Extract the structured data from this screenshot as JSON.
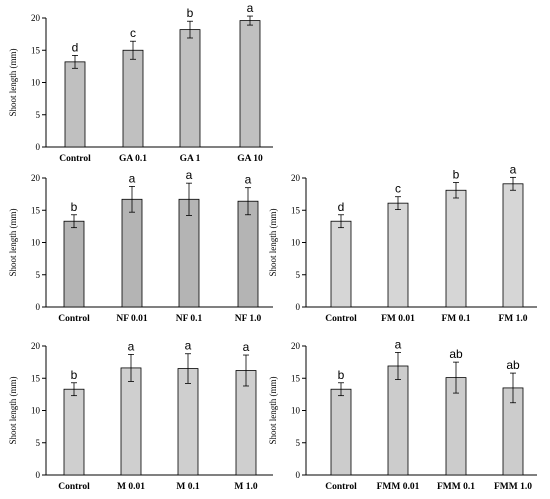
{
  "chart_data": [
    {
      "type": "bar",
      "ylabel": "Shoot length (mm)",
      "ylim": [
        0,
        20
      ],
      "yticks": [
        0,
        5,
        10,
        15,
        20
      ],
      "grid": false,
      "bar_color": "#c0c0c0",
      "categories": [
        "Control",
        "GA 0.1",
        "GA 1",
        "GA 10"
      ],
      "values": [
        13.2,
        15.0,
        18.2,
        19.6
      ],
      "errors": [
        1.0,
        1.4,
        1.3,
        0.7
      ],
      "significance": [
        "d",
        "c",
        "b",
        "a"
      ]
    },
    {
      "type": "bar",
      "ylabel": "Shoot length (mm)",
      "ylim": [
        0,
        20
      ],
      "yticks": [
        0,
        5,
        10,
        15,
        20
      ],
      "grid": false,
      "bar_color": "#b4b4b4",
      "categories": [
        "Control",
        "NF 0.01",
        "NF 0.1",
        "NF 1.0"
      ],
      "values": [
        13.3,
        16.7,
        16.7,
        16.4
      ],
      "errors": [
        1.0,
        2.0,
        2.5,
        2.1
      ],
      "significance": [
        "b",
        "a",
        "a",
        "a"
      ]
    },
    {
      "type": "bar",
      "ylabel": "Shoot length (mm)",
      "ylim": [
        0,
        20
      ],
      "yticks": [
        0,
        5,
        10,
        15,
        20
      ],
      "grid": false,
      "bar_color": "#d6d6d6",
      "categories": [
        "Control",
        "FM 0.01",
        "FM 0.1",
        "FM 1.0"
      ],
      "values": [
        13.3,
        16.1,
        18.1,
        19.1
      ],
      "errors": [
        1.0,
        1.0,
        1.2,
        1.0
      ],
      "significance": [
        "d",
        "c",
        "b",
        "a"
      ]
    },
    {
      "type": "bar",
      "ylabel": "Shoot length (mm)",
      "ylim": [
        0,
        20
      ],
      "yticks": [
        0,
        5,
        10,
        15,
        20
      ],
      "grid": false,
      "bar_color": "#cfcfcf",
      "categories": [
        "Control",
        "M 0.01",
        "M 0.1",
        "M 1.0"
      ],
      "values": [
        13.3,
        16.6,
        16.5,
        16.2
      ],
      "errors": [
        1.0,
        2.1,
        2.3,
        2.4
      ],
      "significance": [
        "b",
        "a",
        "a",
        "a"
      ]
    },
    {
      "type": "bar",
      "ylabel": "Shoot length (mm)",
      "ylim": [
        0,
        20
      ],
      "yticks": [
        0,
        5,
        10,
        15,
        20
      ],
      "grid": false,
      "bar_color": "#cccccc",
      "categories": [
        "Control",
        "FMM 0.01",
        "FMM 0.1",
        "FMM 1.0"
      ],
      "values": [
        13.3,
        16.9,
        15.1,
        13.5
      ],
      "errors": [
        1.0,
        2.1,
        2.4,
        2.3
      ],
      "significance": [
        "b",
        "a",
        "ab",
        "ab"
      ]
    }
  ]
}
